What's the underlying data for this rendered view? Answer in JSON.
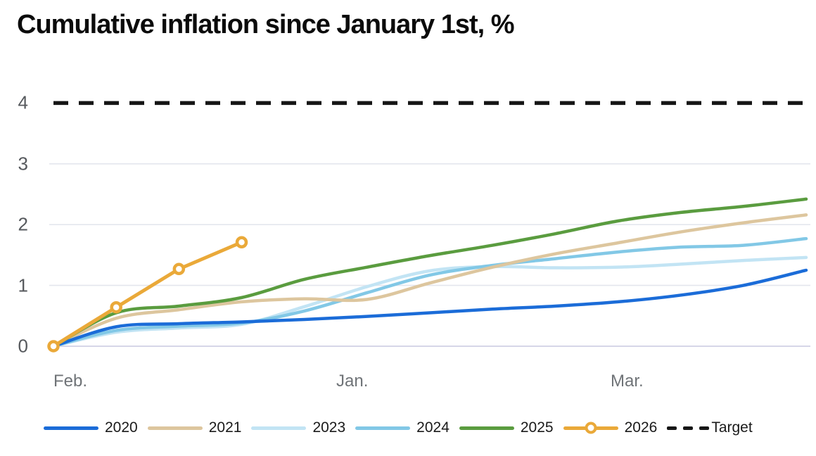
{
  "title": "Cumulative inflation since January 1st, %",
  "chart_data": {
    "type": "line",
    "title": "Cumulative inflation since January 1st, %",
    "xlabel": "",
    "ylabel": "",
    "x_axis": {
      "labels": [
        "Feb.",
        "Jan.",
        "Mar."
      ]
    },
    "y_axis": {
      "ticks": [
        4,
        3,
        2,
        1,
        0
      ],
      "range": [
        0,
        4
      ],
      "grid_values": [
        0,
        1,
        2,
        3
      ]
    },
    "grid": "horizontal",
    "legend_position": "bottom",
    "colors": {
      "grid": "#e4e6ee",
      "grid_zero": "#c9c9e0",
      "target": "#161616"
    },
    "series": [
      {
        "name": "2023",
        "color": "#c2e4f4",
        "values": [
          0,
          0.23,
          0.3,
          0.36,
          0.65,
          0.98,
          1.24,
          1.31,
          1.29,
          1.3,
          1.35,
          1.41,
          1.46
        ]
      },
      {
        "name": "2024",
        "color": "#82c8e6",
        "values": [
          0,
          0.26,
          0.33,
          0.38,
          0.58,
          0.88,
          1.17,
          1.33,
          1.44,
          1.55,
          1.63,
          1.66,
          1.77
        ]
      },
      {
        "name": "2021",
        "color": "#ddc69e",
        "values": [
          0,
          0.46,
          0.6,
          0.73,
          0.78,
          0.77,
          1.04,
          1.3,
          1.52,
          1.7,
          1.88,
          2.03,
          2.16
        ]
      },
      {
        "name": "2020",
        "color": "#1b6cd8",
        "values": [
          0,
          0.32,
          0.37,
          0.4,
          0.44,
          0.49,
          0.55,
          0.61,
          0.66,
          0.73,
          0.84,
          1.0,
          1.25
        ]
      },
      {
        "name": "2025",
        "color": "#5a9c3f",
        "values": [
          0,
          0.55,
          0.66,
          0.8,
          1.1,
          1.3,
          1.49,
          1.66,
          1.85,
          2.06,
          2.2,
          2.3,
          2.42
        ]
      },
      {
        "name": "2026",
        "color": "#eaa939",
        "marker": "circle",
        "values": [
          0,
          0.64,
          1.27,
          1.71
        ]
      },
      {
        "name": "Target",
        "color": "#161616",
        "style": "dashed",
        "constant": 4
      }
    ],
    "legend_order": [
      "2020",
      "2021",
      "2023",
      "2024",
      "2025",
      "2026",
      "Target"
    ]
  }
}
